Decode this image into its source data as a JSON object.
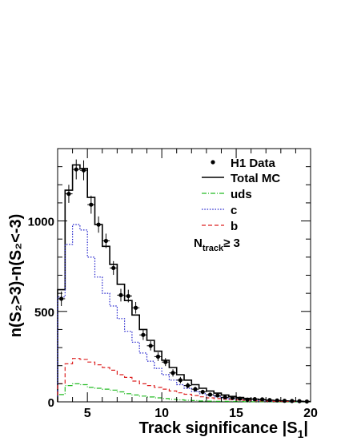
{
  "chart_data": {
    "type": "line",
    "title": "",
    "xlabel_main": "Track significance |S",
    "xlabel_sub": "1",
    "xlabel_end": "|",
    "ylabel": "n(S₂>3)-n(S₂<-3)",
    "xlim": [
      3,
      20
    ],
    "ylim": [
      0,
      1400
    ],
    "x_ticks": [
      5,
      10,
      15,
      20
    ],
    "y_ticks": [
      0,
      500,
      1000
    ],
    "bin_edges": [
      3,
      3.5,
      4,
      4.5,
      5,
      5.5,
      6,
      6.5,
      7,
      7.5,
      8,
      8.5,
      9,
      9.5,
      10,
      10.5,
      11,
      11.5,
      12,
      12.5,
      13,
      13.5,
      14,
      14.5,
      15,
      15.5,
      16,
      16.5,
      17,
      17.5,
      18,
      18.5,
      19,
      19.5,
      20
    ],
    "series": [
      {
        "name": "Total MC",
        "style": "solid",
        "color": "#000000",
        "values": [
          620,
          1170,
          1310,
          1290,
          1130,
          980,
          860,
          760,
          650,
          560,
          480,
          400,
          340,
          280,
          230,
          190,
          150,
          120,
          95,
          75,
          60,
          48,
          38,
          30,
          24,
          19,
          15,
          12,
          9,
          7,
          5,
          4,
          3,
          2
        ]
      },
      {
        "name": "uds",
        "style": "dashdot",
        "color": "#22bb22",
        "values": [
          40,
          90,
          100,
          95,
          80,
          75,
          70,
          65,
          55,
          45,
          38,
          32,
          27,
          22,
          18,
          14,
          11,
          9,
          7,
          5,
          4,
          3,
          3,
          2,
          2,
          1,
          1,
          1,
          1,
          0,
          0,
          0,
          0,
          0
        ]
      },
      {
        "name": "c",
        "style": "dotted",
        "color": "#2222cc",
        "values": [
          580,
          870,
          980,
          950,
          800,
          690,
          600,
          530,
          460,
          390,
          330,
          270,
          225,
          185,
          150,
          120,
          95,
          75,
          58,
          45,
          35,
          27,
          21,
          16,
          12,
          9,
          7,
          5,
          4,
          3,
          2,
          2,
          1,
          1
        ]
      },
      {
        "name": "b",
        "style": "dashed",
        "color": "#dd2222",
        "values": [
          100,
          210,
          240,
          235,
          220,
          205,
          190,
          175,
          150,
          135,
          115,
          100,
          90,
          80,
          70,
          60,
          50,
          42,
          35,
          28,
          22,
          18,
          15,
          12,
          10,
          8,
          6,
          5,
          4,
          3,
          2,
          2,
          1,
          1
        ]
      }
    ],
    "data_points": {
      "name": "H1 Data",
      "x": [
        3.25,
        3.75,
        4.25,
        4.75,
        5.25,
        5.75,
        6.25,
        6.75,
        7.25,
        7.75,
        8.25,
        8.75,
        9.25,
        9.75,
        10.25,
        10.75,
        11.25,
        11.75,
        12.25,
        12.75,
        13.25,
        13.75,
        14.25,
        14.75,
        15.25,
        15.75,
        16.25,
        16.75,
        17.25,
        17.75,
        18.25,
        18.75,
        19.25,
        19.75
      ],
      "y": [
        570,
        1150,
        1285,
        1280,
        1090,
        980,
        890,
        740,
        590,
        585,
        520,
        370,
        310,
        250,
        220,
        160,
        120,
        90,
        70,
        55,
        40,
        35,
        25,
        22,
        18,
        12,
        15,
        14,
        10,
        8,
        6,
        5,
        4,
        2
      ],
      "err": [
        40,
        50,
        55,
        55,
        50,
        45,
        40,
        38,
        35,
        35,
        32,
        28,
        26,
        24,
        22,
        20,
        18,
        16,
        14,
        12,
        11,
        10,
        9,
        8,
        7,
        6,
        6,
        6,
        5,
        5,
        4,
        4,
        4,
        3
      ]
    },
    "legend": {
      "position": "top-right",
      "entries": [
        "H1 Data",
        "Total MC",
        "uds",
        "c",
        "b"
      ],
      "annotation_main": "N",
      "annotation_sub": "track",
      "annotation_tail": "≥ 3"
    }
  }
}
